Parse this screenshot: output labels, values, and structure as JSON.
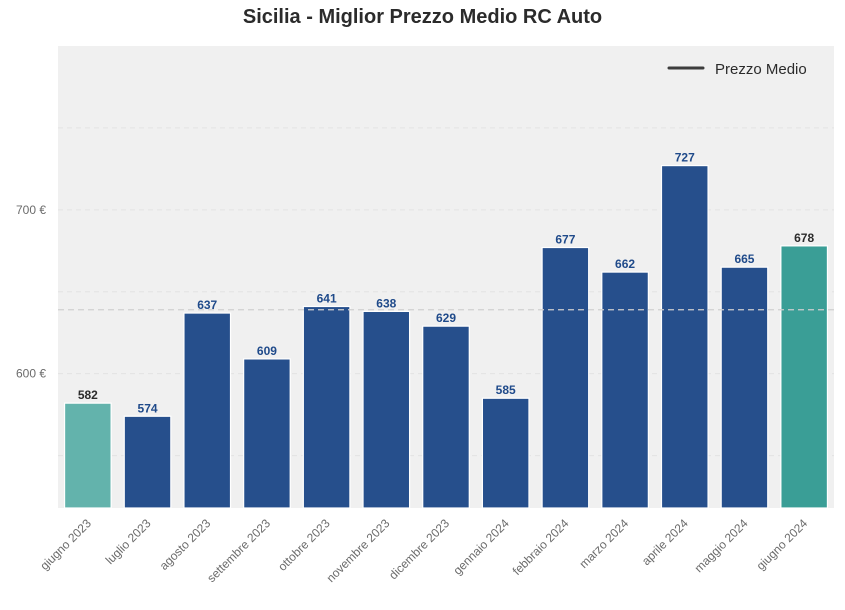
{
  "chart_data": {
    "type": "bar",
    "title": "Sicilia - Miglior Prezzo Medio RC Auto",
    "xlabel": "",
    "ylabel": "",
    "categories": [
      "giugno 2023",
      "luglio 2023",
      "agosto 2023",
      "settembre 2023",
      "ottobre 2023",
      "novembre 2023",
      "dicembre 2023",
      "gennaio 2024",
      "febbraio 2024",
      "marzo 2024",
      "aprile 2024",
      "maggio 2024",
      "giugno 2024"
    ],
    "values": [
      582,
      574,
      637,
      609,
      641,
      638,
      629,
      585,
      677,
      662,
      727,
      665,
      678
    ],
    "value_labels": [
      "582",
      "574",
      "637",
      "609",
      "641",
      "638",
      "629",
      "585",
      "677",
      "662",
      "727",
      "665",
      "678"
    ],
    "bar_colors": [
      "#63b3ac",
      "#264f8c",
      "#264f8c",
      "#264f8c",
      "#264f8c",
      "#264f8c",
      "#264f8c",
      "#264f8c",
      "#264f8c",
      "#264f8c",
      "#264f8c",
      "#264f8c",
      "#3a9e96"
    ],
    "label_colors": [
      "#2b2b2b",
      "#1f4a8a",
      "#1f4a8a",
      "#1f4a8a",
      "#1f4a8a",
      "#1f4a8a",
      "#1f4a8a",
      "#1f4a8a",
      "#1f4a8a",
      "#1f4a8a",
      "#1f4a8a",
      "#1f4a8a",
      "#2b2b2b"
    ],
    "ylim": [
      518,
      800
    ],
    "yticks": [
      600,
      700
    ],
    "ytick_labels": [
      "600 €",
      "700 €"
    ],
    "average_line": {
      "value": 639,
      "legend_label": "Prezzo Medio",
      "color": "#cfcfcf",
      "legend_color": "#3d3d3d"
    },
    "grid": true,
    "legend_position": "top-right",
    "background_color": "#f0f0f0"
  }
}
